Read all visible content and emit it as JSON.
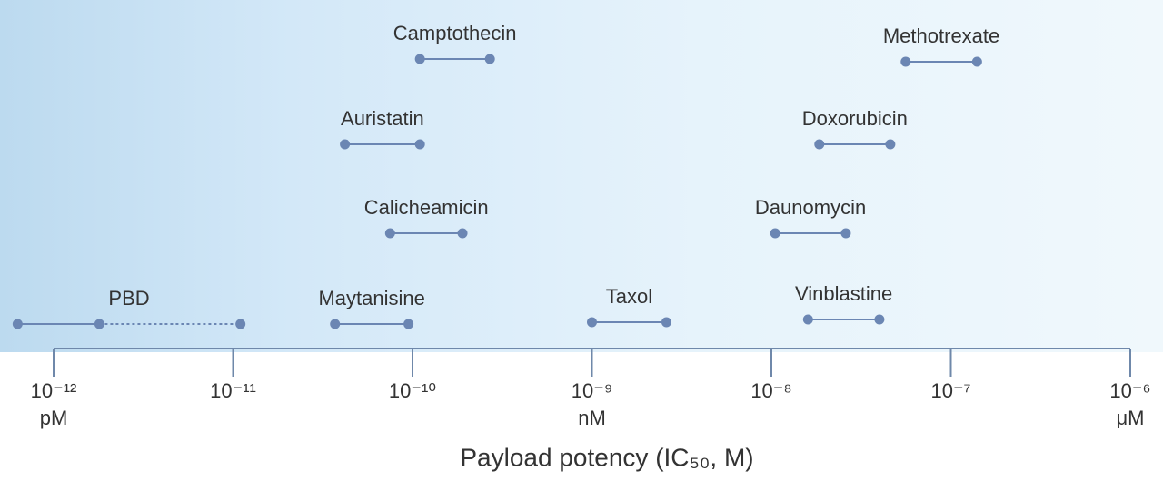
{
  "chart_data": {
    "type": "range",
    "xlabel": "Payload potency (IC₅₀, M)",
    "xlog": true,
    "xlim": [
      1e-12,
      1e-06
    ],
    "xticks": [
      {
        "value": 1e-12,
        "label": "10⁻¹²"
      },
      {
        "value": 1e-11,
        "label": "10⁻¹¹"
      },
      {
        "value": 1e-10,
        "label": "10⁻¹⁰"
      },
      {
        "value": 1e-09,
        "label": "10⁻⁹"
      },
      {
        "value": 1e-08,
        "label": "10⁻⁸"
      },
      {
        "value": 1e-07,
        "label": "10⁻⁷"
      },
      {
        "value": 1e-06,
        "label": "10⁻⁶"
      }
    ],
    "xtick_units": [
      {
        "value": 1e-12,
        "label": "pM"
      },
      {
        "value": 1e-09,
        "label": "nM"
      },
      {
        "value": 1e-06,
        "label": "μM"
      }
    ],
    "color": "#6b86b3",
    "series": [
      {
        "name": "PBD",
        "values": [
          6.3e-13,
          1.8e-12
        ],
        "extension": 1.1e-11
      },
      {
        "name": "Maytanisine",
        "values": [
          3.7e-11,
          9.5e-11
        ]
      },
      {
        "name": "Calicheamicin",
        "values": [
          7.5e-11,
          1.9e-10
        ]
      },
      {
        "name": "Auristatin",
        "values": [
          4.2e-11,
          1.1e-10
        ]
      },
      {
        "name": "Camptothecin",
        "values": [
          1.1e-10,
          2.7e-10
        ]
      },
      {
        "name": "Taxol",
        "values": [
          1e-09,
          2.6e-09
        ]
      },
      {
        "name": "Vinblastine",
        "values": [
          1.6e-08,
          4e-08
        ]
      },
      {
        "name": "Daunomycin",
        "values": [
          1.05e-08,
          2.6e-08
        ]
      },
      {
        "name": "Doxorubicin",
        "values": [
          1.85e-08,
          4.6e-08
        ]
      },
      {
        "name": "Methotrexate",
        "values": [
          5.6e-08,
          1.4e-07
        ]
      }
    ]
  }
}
